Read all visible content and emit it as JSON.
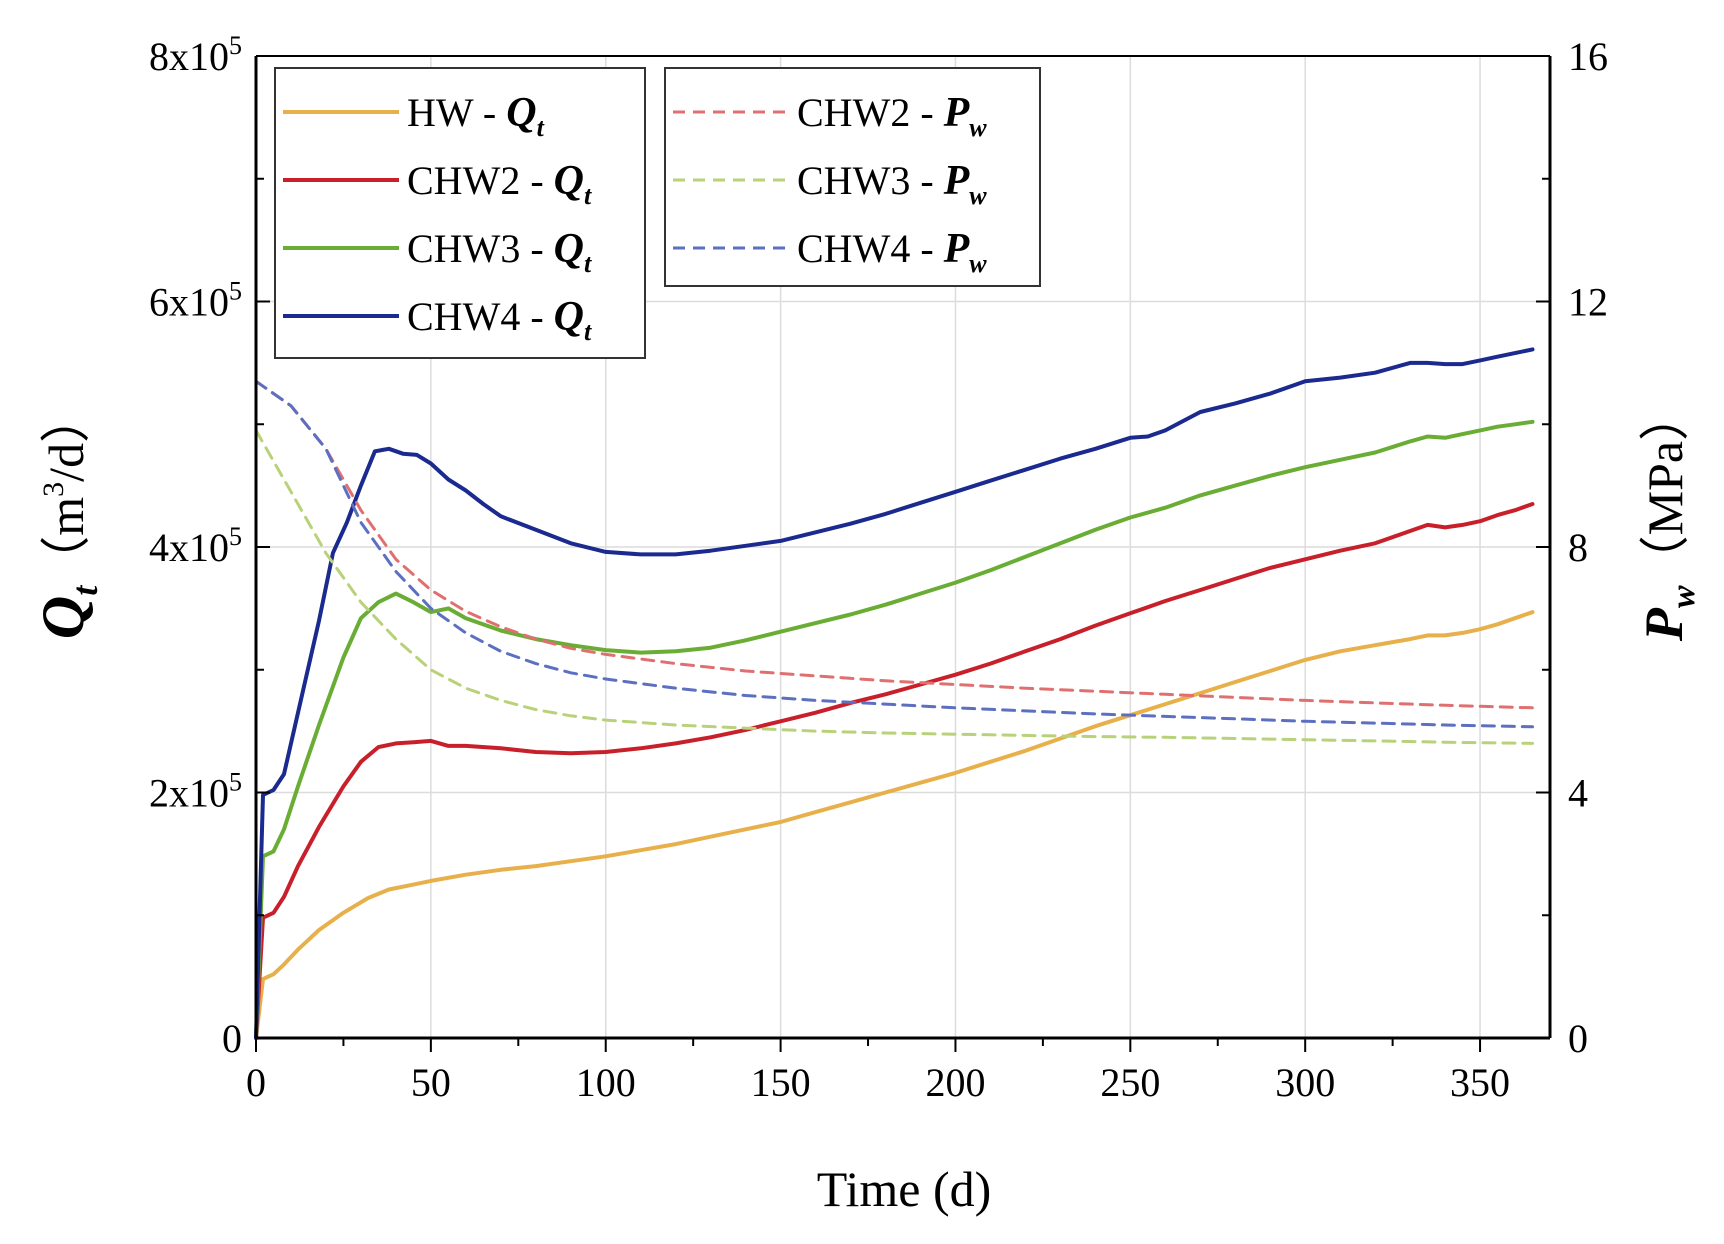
{
  "chart_data": {
    "type": "line",
    "title": "",
    "xlabel": "Time (d)",
    "ylabel_left": {
      "symbol": "Q",
      "subscript": "t",
      "unit_prefix": "（m",
      "unit_sup": "3",
      "unit_suffix": "/d）"
    },
    "ylabel_right": {
      "symbol": "P",
      "subscript": "w",
      "unit": "（MPa）"
    },
    "xlim": [
      0,
      370
    ],
    "ylim_left": [
      0,
      800000
    ],
    "ylim_right": [
      0,
      16
    ],
    "x_ticks": [
      0,
      50,
      100,
      150,
      200,
      250,
      300,
      350
    ],
    "x_tick_labels": [
      "0",
      "50",
      "100",
      "150",
      "200",
      "250",
      "300",
      "350"
    ],
    "y_left_ticks": [
      0,
      200000,
      400000,
      600000,
      800000
    ],
    "y_left_tick_labels": [
      {
        "text": "0",
        "sup": ""
      },
      {
        "text": "2x10",
        "sup": "5"
      },
      {
        "text": "4x10",
        "sup": "5"
      },
      {
        "text": "6x10",
        "sup": "5"
      },
      {
        "text": "8x10",
        "sup": "5"
      }
    ],
    "y_right_ticks": [
      0,
      4,
      8,
      12,
      16
    ],
    "y_right_tick_labels": [
      "0",
      "4",
      "8",
      "12",
      "16"
    ],
    "grid": true,
    "legend_placement": "top-left",
    "legend_dash": "- ",
    "series": [
      {
        "name": "HW - Q",
        "label": "HW",
        "var": "Q",
        "sub": "t",
        "axis": "left",
        "style": "solid",
        "color": "#e8b04b",
        "x": [
          0,
          2,
          5,
          8,
          12,
          18,
          25,
          32,
          38,
          45,
          50,
          60,
          70,
          80,
          90,
          100,
          110,
          120,
          130,
          140,
          150,
          160,
          170,
          180,
          190,
          200,
          210,
          220,
          230,
          240,
          250,
          260,
          270,
          280,
          290,
          300,
          310,
          320,
          330,
          335,
          340,
          345,
          350,
          355,
          360,
          365
        ],
        "y": [
          0,
          48000,
          52000,
          60000,
          72000,
          88000,
          102000,
          114000,
          121000,
          125000,
          128000,
          133000,
          137000,
          140000,
          144000,
          148000,
          153000,
          158000,
          164000,
          170000,
          176000,
          184000,
          192000,
          200000,
          208000,
          216000,
          225000,
          234000,
          244000,
          254000,
          263000,
          272000,
          281000,
          290000,
          299000,
          308000,
          315000,
          320000,
          325000,
          328000,
          328000,
          330000,
          333000,
          337000,
          342000,
          347000
        ]
      },
      {
        "name": "CHW2 - Q",
        "label": "CHW2",
        "var": "Q",
        "sub": "t",
        "axis": "left",
        "style": "solid",
        "color": "#c8202b",
        "x": [
          0,
          2,
          5,
          8,
          12,
          18,
          25,
          30,
          35,
          40,
          45,
          50,
          55,
          60,
          70,
          80,
          90,
          100,
          110,
          120,
          130,
          140,
          150,
          160,
          170,
          180,
          190,
          200,
          210,
          220,
          230,
          240,
          250,
          260,
          270,
          280,
          290,
          300,
          310,
          320,
          330,
          335,
          340,
          345,
          350,
          355,
          360,
          365
        ],
        "y": [
          0,
          98000,
          102000,
          115000,
          140000,
          172000,
          205000,
          225000,
          237000,
          240000,
          241000,
          242000,
          238000,
          238000,
          236000,
          233000,
          232000,
          233000,
          236000,
          240000,
          245000,
          251000,
          258000,
          265000,
          273000,
          280000,
          288000,
          296000,
          305000,
          315000,
          325000,
          336000,
          346000,
          356000,
          365000,
          374000,
          383000,
          390000,
          397000,
          403000,
          413000,
          418000,
          416000,
          418000,
          421000,
          426000,
          430000,
          435000
        ]
      },
      {
        "name": "CHW3 - Q",
        "label": "CHW3",
        "var": "Q",
        "sub": "t",
        "axis": "left",
        "style": "solid",
        "color": "#6aad35",
        "x": [
          0,
          2,
          5,
          8,
          12,
          18,
          25,
          30,
          35,
          40,
          45,
          50,
          55,
          60,
          70,
          80,
          90,
          100,
          110,
          120,
          130,
          140,
          150,
          160,
          170,
          180,
          190,
          200,
          210,
          220,
          230,
          240,
          250,
          260,
          270,
          280,
          290,
          300,
          310,
          320,
          330,
          335,
          340,
          345,
          350,
          355,
          360,
          365
        ],
        "y": [
          0,
          148000,
          152000,
          170000,
          205000,
          255000,
          310000,
          342000,
          355000,
          362000,
          355000,
          347000,
          350000,
          342000,
          332000,
          325000,
          320000,
          316000,
          314000,
          315000,
          318000,
          324000,
          331000,
          338000,
          345000,
          353000,
          362000,
          371000,
          381000,
          392000,
          403000,
          414000,
          424000,
          432000,
          442000,
          450000,
          458000,
          465000,
          471000,
          477000,
          486000,
          490000,
          489000,
          492000,
          495000,
          498000,
          500000,
          502000
        ]
      },
      {
        "name": "CHW4 - Q",
        "label": "CHW4",
        "var": "Q",
        "sub": "t",
        "axis": "left",
        "style": "solid",
        "color": "#1b2a8e",
        "x": [
          0,
          2,
          5,
          8,
          12,
          18,
          22,
          26,
          30,
          34,
          38,
          42,
          46,
          50,
          55,
          60,
          65,
          70,
          80,
          90,
          100,
          110,
          120,
          130,
          140,
          150,
          160,
          170,
          180,
          190,
          200,
          210,
          220,
          230,
          240,
          250,
          255,
          260,
          270,
          280,
          290,
          300,
          310,
          320,
          330,
          335,
          340,
          345,
          350,
          355,
          360,
          365
        ],
        "y": [
          0,
          198000,
          202000,
          215000,
          265000,
          340000,
          395000,
          420000,
          450000,
          478000,
          480000,
          476000,
          475000,
          468000,
          455000,
          446000,
          435000,
          425000,
          414000,
          403000,
          396000,
          394000,
          394000,
          397000,
          401000,
          405000,
          412000,
          419000,
          427000,
          436000,
          445000,
          454000,
          463000,
          472000,
          480000,
          489000,
          490000,
          495000,
          510000,
          517000,
          525000,
          535000,
          538000,
          542000,
          550000,
          550000,
          549000,
          549000,
          552000,
          555000,
          558000,
          561000
        ]
      },
      {
        "name": "CHW2 - P",
        "label": "CHW2",
        "var": "P",
        "sub": "w",
        "axis": "right",
        "style": "dashed",
        "color": "#e07070",
        "x": [
          0,
          10,
          20,
          30,
          40,
          50,
          60,
          70,
          80,
          90,
          100,
          120,
          140,
          160,
          180,
          200,
          220,
          240,
          260,
          280,
          300,
          320,
          340,
          365
        ],
        "y": [
          10.7,
          10.3,
          9.6,
          8.6,
          7.8,
          7.3,
          6.95,
          6.7,
          6.5,
          6.35,
          6.25,
          6.1,
          5.98,
          5.9,
          5.82,
          5.76,
          5.7,
          5.65,
          5.6,
          5.55,
          5.5,
          5.46,
          5.42,
          5.38
        ]
      },
      {
        "name": "CHW3 - P",
        "label": "CHW3",
        "var": "P",
        "sub": "w",
        "axis": "right",
        "style": "dashed",
        "color": "#b8d27a",
        "x": [
          0,
          10,
          20,
          30,
          40,
          50,
          60,
          70,
          80,
          90,
          100,
          120,
          140,
          160,
          180,
          200,
          220,
          240,
          260,
          280,
          300,
          320,
          340,
          365
        ],
        "y": [
          9.9,
          8.9,
          7.9,
          7.1,
          6.5,
          6.0,
          5.7,
          5.5,
          5.35,
          5.25,
          5.18,
          5.1,
          5.05,
          5.0,
          4.97,
          4.95,
          4.93,
          4.91,
          4.9,
          4.88,
          4.86,
          4.84,
          4.82,
          4.8
        ]
      },
      {
        "name": "CHW4 - P",
        "label": "CHW4",
        "var": "P",
        "sub": "w",
        "axis": "right",
        "style": "dashed",
        "color": "#5c6fc0",
        "x": [
          0,
          10,
          20,
          30,
          40,
          50,
          60,
          70,
          80,
          90,
          100,
          120,
          140,
          160,
          180,
          200,
          220,
          240,
          260,
          280,
          300,
          320,
          340,
          365
        ],
        "y": [
          10.7,
          10.3,
          9.6,
          8.4,
          7.6,
          7.0,
          6.6,
          6.3,
          6.1,
          5.95,
          5.85,
          5.7,
          5.58,
          5.5,
          5.44,
          5.38,
          5.33,
          5.28,
          5.24,
          5.2,
          5.16,
          5.13,
          5.1,
          5.07
        ]
      }
    ]
  }
}
